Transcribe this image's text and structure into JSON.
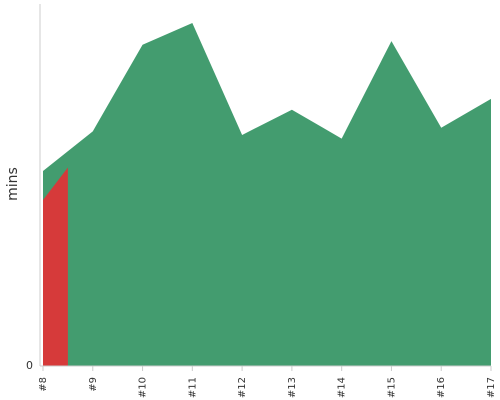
{
  "chart_data": {
    "type": "area",
    "ylabel": "mins",
    "xlabel": "",
    "categories": [
      "#8",
      "#9",
      "#10",
      "#11",
      "#12",
      "#13",
      "#14",
      "#15",
      "#16",
      "#17"
    ],
    "y_tick_labels": [
      "0"
    ],
    "ylim": [
      0,
      100
    ],
    "grid": false,
    "series": [
      {
        "color": "#439c6f",
        "values": [
          54,
          65,
          89,
          95,
          64,
          71,
          63,
          90,
          66,
          74
        ]
      }
    ],
    "highlight": {
      "color": "#d63a3a",
      "from": "#8",
      "to_fraction": 0.5,
      "values": [
        46,
        55
      ]
    }
  }
}
